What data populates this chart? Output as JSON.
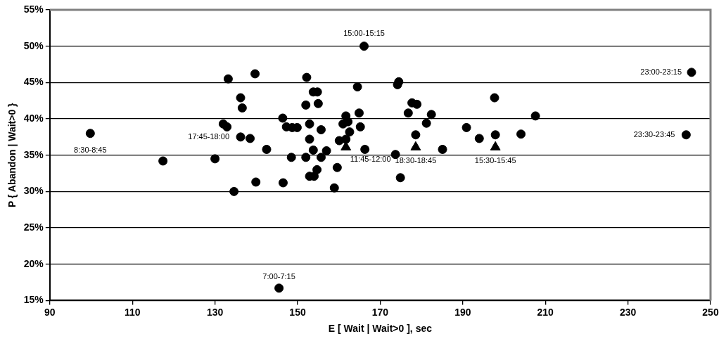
{
  "chart_data": {
    "type": "scatter",
    "xlabel": "E [ Wait | Wait>0 ], sec",
    "ylabel": "P { Abandon | Wait>0 }",
    "xlim": [
      90,
      250
    ],
    "xticks": [
      90,
      110,
      130,
      150,
      170,
      190,
      210,
      230,
      250
    ],
    "ylim": [
      15,
      55
    ],
    "yticks": [
      {
        "value": 15,
        "label": "15%"
      },
      {
        "value": 20,
        "label": "20%"
      },
      {
        "value": 25,
        "label": "25%"
      },
      {
        "value": 30,
        "label": "30%"
      },
      {
        "value": 35,
        "label": "35%"
      },
      {
        "value": 40,
        "label": "40%"
      },
      {
        "value": 45,
        "label": "45%"
      },
      {
        "value": 50,
        "label": "50%"
      },
      {
        "value": 55,
        "label": "55%"
      }
    ],
    "grid": "y",
    "legend": false,
    "series": [
      {
        "color": "#000000",
        "marker": "circle",
        "x": [
          99.8,
          117.4,
          130,
          133.2,
          139.7,
          136.2,
          136.6,
          132,
          132.9,
          136.2,
          138.5,
          142.5,
          139.9,
          134.6,
          146.4,
          145.5,
          152.2,
          153.8,
          154.8,
          152,
          155,
          147.3,
          148.7,
          149.9,
          152.9,
          155.7,
          152.9,
          153.8,
          157,
          148.5,
          152,
          155.7,
          154.7,
          152.9,
          154,
          146.5,
          158.9,
          159.6,
          161.7,
          161,
          162.2,
          162.6,
          160.1,
          161.7,
          164.9,
          164.5,
          165.2,
          166.3,
          173.7,
          174.9,
          174.2,
          174.5,
          176.8,
          177.7,
          178.9,
          181.2,
          182.4,
          178.6,
          185.1,
          190.9,
          194,
          197.7,
          197.9,
          166.1,
          207.6,
          204.1,
          245.4,
          244.1
        ],
        "values": [
          38,
          34.2,
          34.5,
          45.5,
          46.2,
          42.9,
          41.5,
          39.3,
          38.9,
          37.5,
          37.3,
          35.8,
          31.3,
          30,
          40.1,
          16.7,
          45.7,
          43.7,
          43.7,
          41.9,
          42.1,
          38.9,
          38.8,
          38.8,
          39.3,
          38.5,
          37.2,
          35.7,
          35.6,
          34.7,
          34.7,
          34.7,
          33,
          32.1,
          32.1,
          31.2,
          30.5,
          33.3,
          40.4,
          39.3,
          39.6,
          38.2,
          37,
          37.2,
          40.8,
          44.4,
          38.9,
          35.8,
          35.1,
          31.9,
          44.7,
          45.1,
          40.8,
          42.2,
          42,
          39.4,
          40.6,
          37.8,
          35.8,
          38.8,
          37.3,
          42.9,
          37.8,
          50,
          40.4,
          37.9,
          46.4,
          37.8
        ]
      },
      {
        "color": "#000000",
        "marker": "triangle",
        "x": [
          161.7,
          178.6,
          197.9
        ],
        "values": [
          36.1,
          36.1,
          36.1
        ]
      }
    ],
    "annotations": [
      {
        "text": "8:30-8:45",
        "x": 99.8,
        "y": 38
      },
      {
        "text": "17:45-18:00",
        "x": 136.2,
        "y": 37.5
      },
      {
        "text": "7:00-7:15",
        "x": 145.5,
        "y": 16.7
      },
      {
        "text": "15:00-15:15",
        "x": 166.1,
        "y": 50
      },
      {
        "text": "11:45-12:00",
        "x": 161.7,
        "y": 36.1
      },
      {
        "text": "18:30-18:45",
        "x": 178.6,
        "y": 36.1
      },
      {
        "text": "15:30-15:45",
        "x": 197.9,
        "y": 36.1
      },
      {
        "text": "23:00-23:15",
        "x": 245.4,
        "y": 46.4
      },
      {
        "text": "23:30-23:45",
        "x": 244.1,
        "y": 37.8
      }
    ]
  }
}
